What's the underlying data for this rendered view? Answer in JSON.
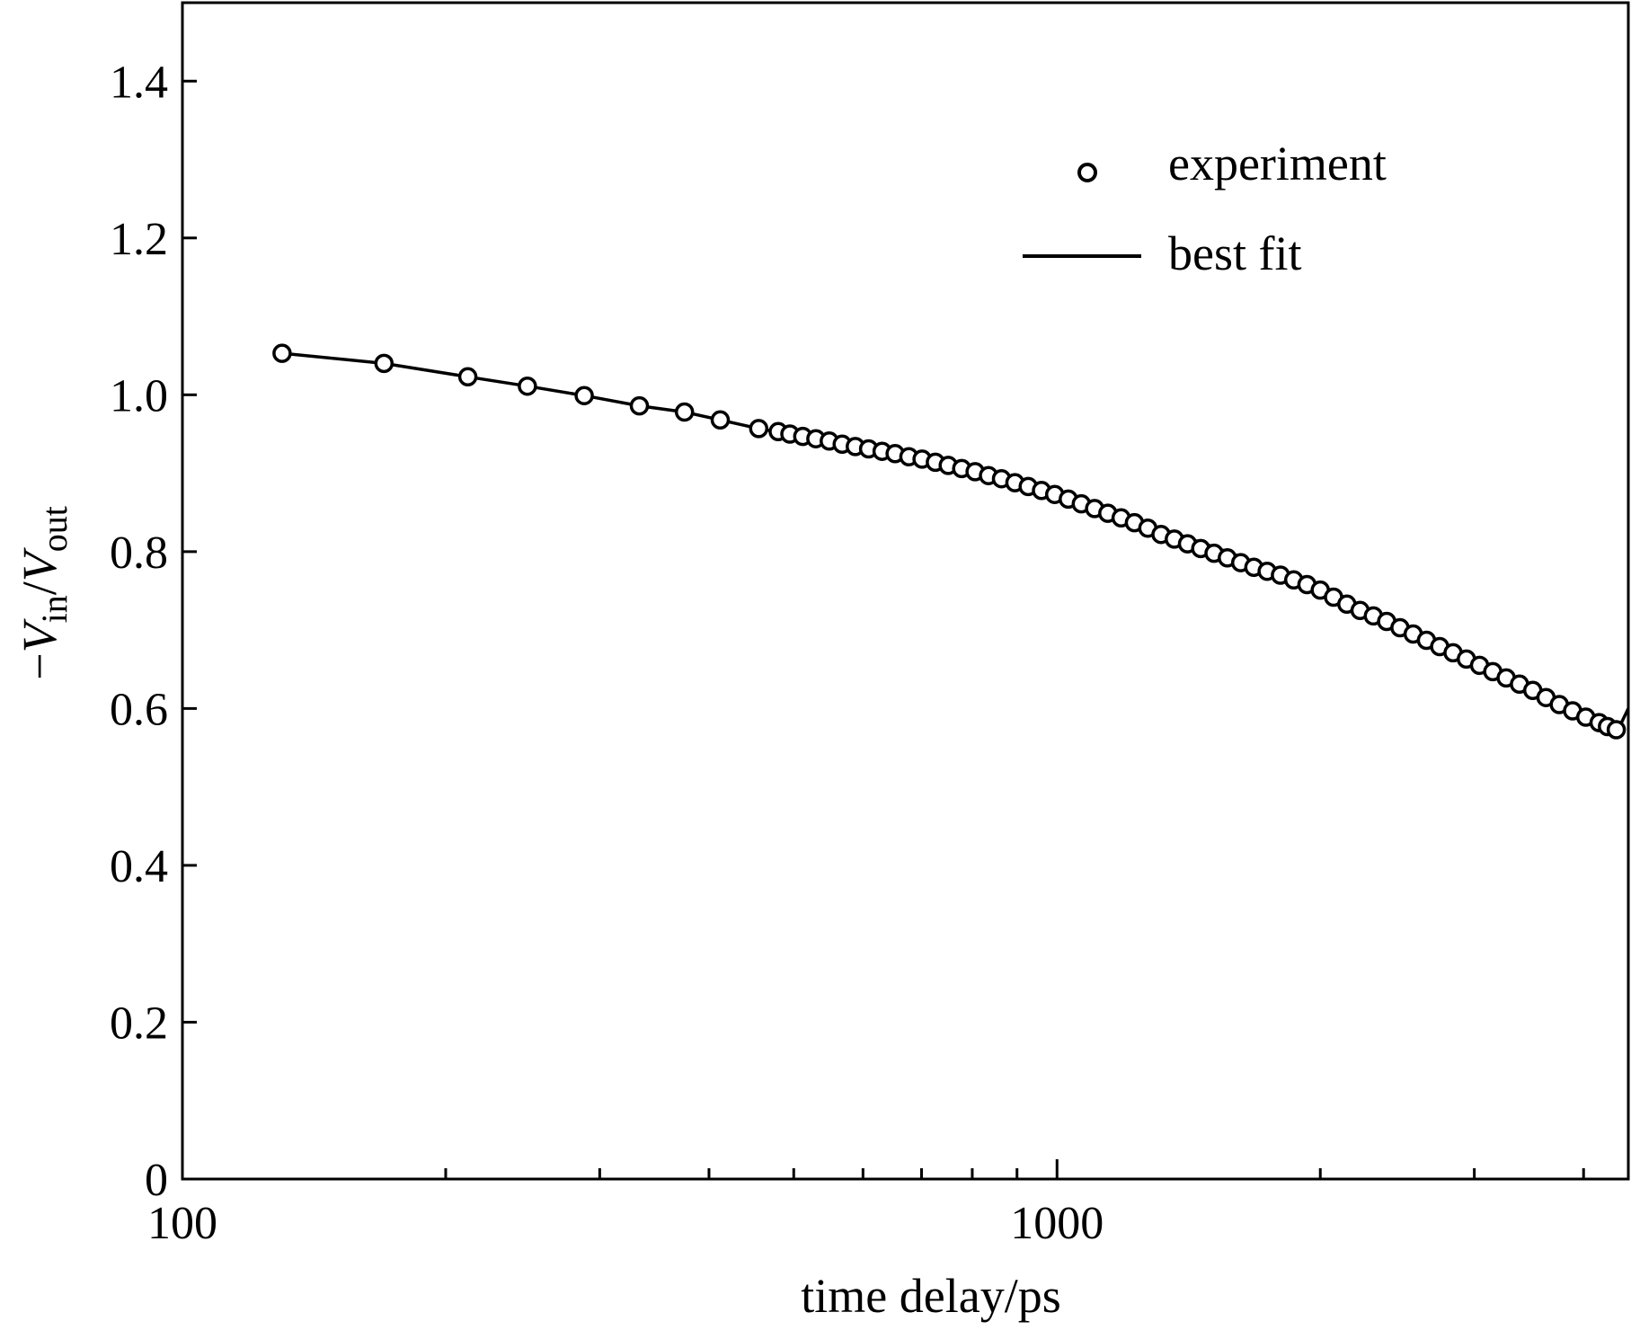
{
  "chart_data": {
    "type": "scatter",
    "title": "",
    "xlabel": "time delay/ps",
    "ylabel": {
      "prefix": "−",
      "v1": "V",
      "sub1": "in",
      "slash": "/",
      "v2": "V",
      "sub2": "out"
    },
    "xscale": "log",
    "xlim": [
      100,
      4500
    ],
    "ylim": [
      0,
      1.5
    ],
    "x_ticks": [
      100,
      1000
    ],
    "x_tick_labels": [
      "100",
      "1000"
    ],
    "y_ticks": [
      0,
      0.2,
      0.4,
      0.6,
      0.8,
      1.0,
      1.2,
      1.4
    ],
    "y_tick_labels": [
      "0",
      "0.2",
      "0.4",
      "0.6",
      "0.8",
      "1.0",
      "1.2",
      "1.4"
    ],
    "legend": {
      "placement": "top-right",
      "entries": [
        {
          "label": "experiment",
          "marker": "circle"
        },
        {
          "label": "best fit",
          "marker": "line"
        }
      ]
    },
    "series": [
      {
        "name": "experiment",
        "style": "markers",
        "x": [
          130,
          170,
          212,
          248,
          288,
          333,
          375,
          412,
          456,
          480,
          495,
          512,
          530,
          549,
          568,
          588,
          609,
          631,
          653,
          677,
          701,
          726,
          751,
          778,
          806,
          835,
          864,
          895,
          927,
          960,
          994,
          1030,
          1066,
          1104,
          1143,
          1184,
          1226,
          1270,
          1315,
          1362,
          1410,
          1460,
          1512,
          1566,
          1622,
          1679,
          1739,
          1801,
          1865,
          1931,
          2000,
          2071,
          2145,
          2221,
          2300,
          2382,
          2467,
          2554,
          2645,
          2739,
          2837,
          2938,
          3042,
          3150,
          3263,
          3379,
          3499,
          3623,
          3752,
          3886,
          4024,
          4167,
          4260,
          4360
        ],
        "y": [
          1.053,
          1.04,
          1.023,
          1.011,
          0.999,
          0.986,
          0.978,
          0.968,
          0.957,
          0.953,
          0.95,
          0.947,
          0.944,
          0.941,
          0.937,
          0.934,
          0.931,
          0.928,
          0.925,
          0.921,
          0.918,
          0.914,
          0.91,
          0.906,
          0.902,
          0.897,
          0.893,
          0.888,
          0.883,
          0.878,
          0.873,
          0.867,
          0.861,
          0.855,
          0.849,
          0.843,
          0.837,
          0.83,
          0.822,
          0.816,
          0.81,
          0.804,
          0.798,
          0.792,
          0.786,
          0.78,
          0.775,
          0.77,
          0.764,
          0.758,
          0.751,
          0.742,
          0.733,
          0.725,
          0.718,
          0.711,
          0.703,
          0.695,
          0.687,
          0.679,
          0.671,
          0.663,
          0.655,
          0.647,
          0.639,
          0.631,
          0.623,
          0.614,
          0.605,
          0.597,
          0.589,
          0.582,
          0.577,
          0.573
        ]
      },
      {
        "name": "best fit",
        "style": "line",
        "x": [
          130,
          170,
          212,
          248,
          288,
          333,
          375,
          412,
          456,
          500,
          560,
          620,
          700,
          780,
          860,
          950,
          1050,
          1150,
          1260,
          1380,
          1520,
          1660,
          1820,
          2000,
          2200,
          2420,
          2660,
          2920,
          3210,
          3530,
          3880,
          4200,
          4380,
          4500
        ],
        "y": [
          1.053,
          1.04,
          1.023,
          1.011,
          0.999,
          0.986,
          0.978,
          0.968,
          0.957,
          0.949,
          0.938,
          0.929,
          0.918,
          0.906,
          0.894,
          0.881,
          0.866,
          0.851,
          0.836,
          0.821,
          0.805,
          0.789,
          0.772,
          0.754,
          0.73,
          0.708,
          0.685,
          0.662,
          0.639,
          0.616,
          0.594,
          0.58,
          0.573,
          0.6
        ]
      }
    ]
  }
}
